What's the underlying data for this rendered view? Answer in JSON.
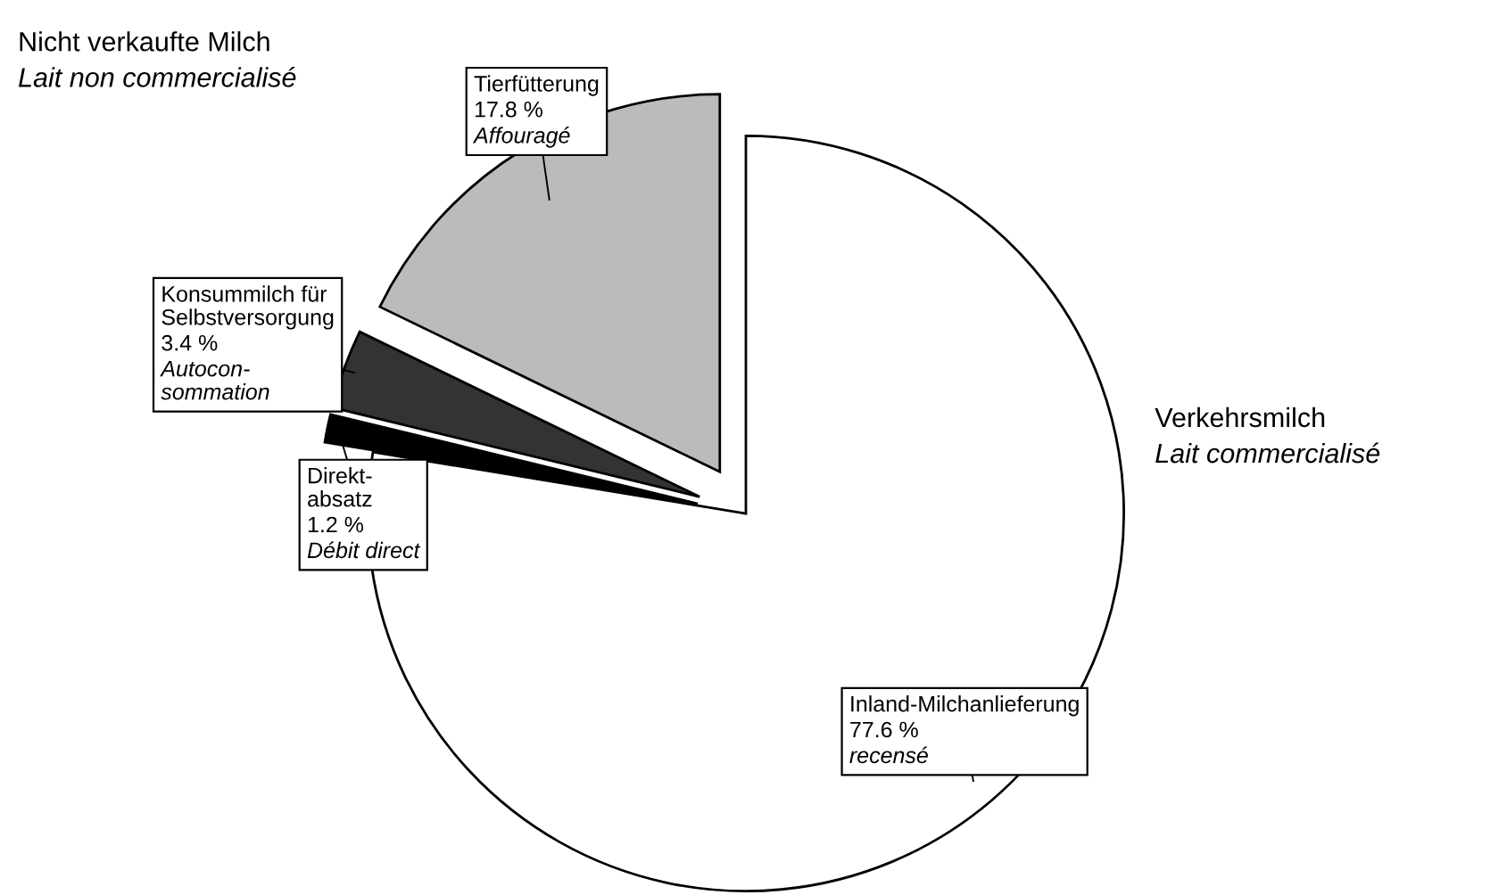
{
  "chart_data": {
    "type": "pie",
    "categories": [
      "Inland-Milchanlieferung",
      "Direkt-\nabsatz",
      "Konsummilch für\nSelbstversorgung",
      "Tierfütterung"
    ],
    "values": [
      77.6,
      1.2,
      3.4,
      17.8
    ],
    "value_labels": [
      "77.6 %",
      "1.2 %",
      "3.4 %",
      "17.8 %"
    ],
    "colors": [
      "#ffffff",
      "#000000",
      "#333333",
      "#bbbbbb"
    ],
    "annotations": [
      "Nicht verkaufte Milch",
      "Lait non commercialisé",
      "Verkehrsmilch",
      "Lait commercialisé",
      {
        "text": "recensé",
        "x": "Inland-Milchanlieferung"
      },
      {
        "text": "Débit direct",
        "x": "Direkt-\nabsatz"
      },
      {
        "text": "Autocon-\nsommation",
        "x": "Konsummilch für\nSelbstversorgung"
      },
      {
        "text": "Affouragé",
        "x": "Tierfütterung"
      }
    ]
  }
}
